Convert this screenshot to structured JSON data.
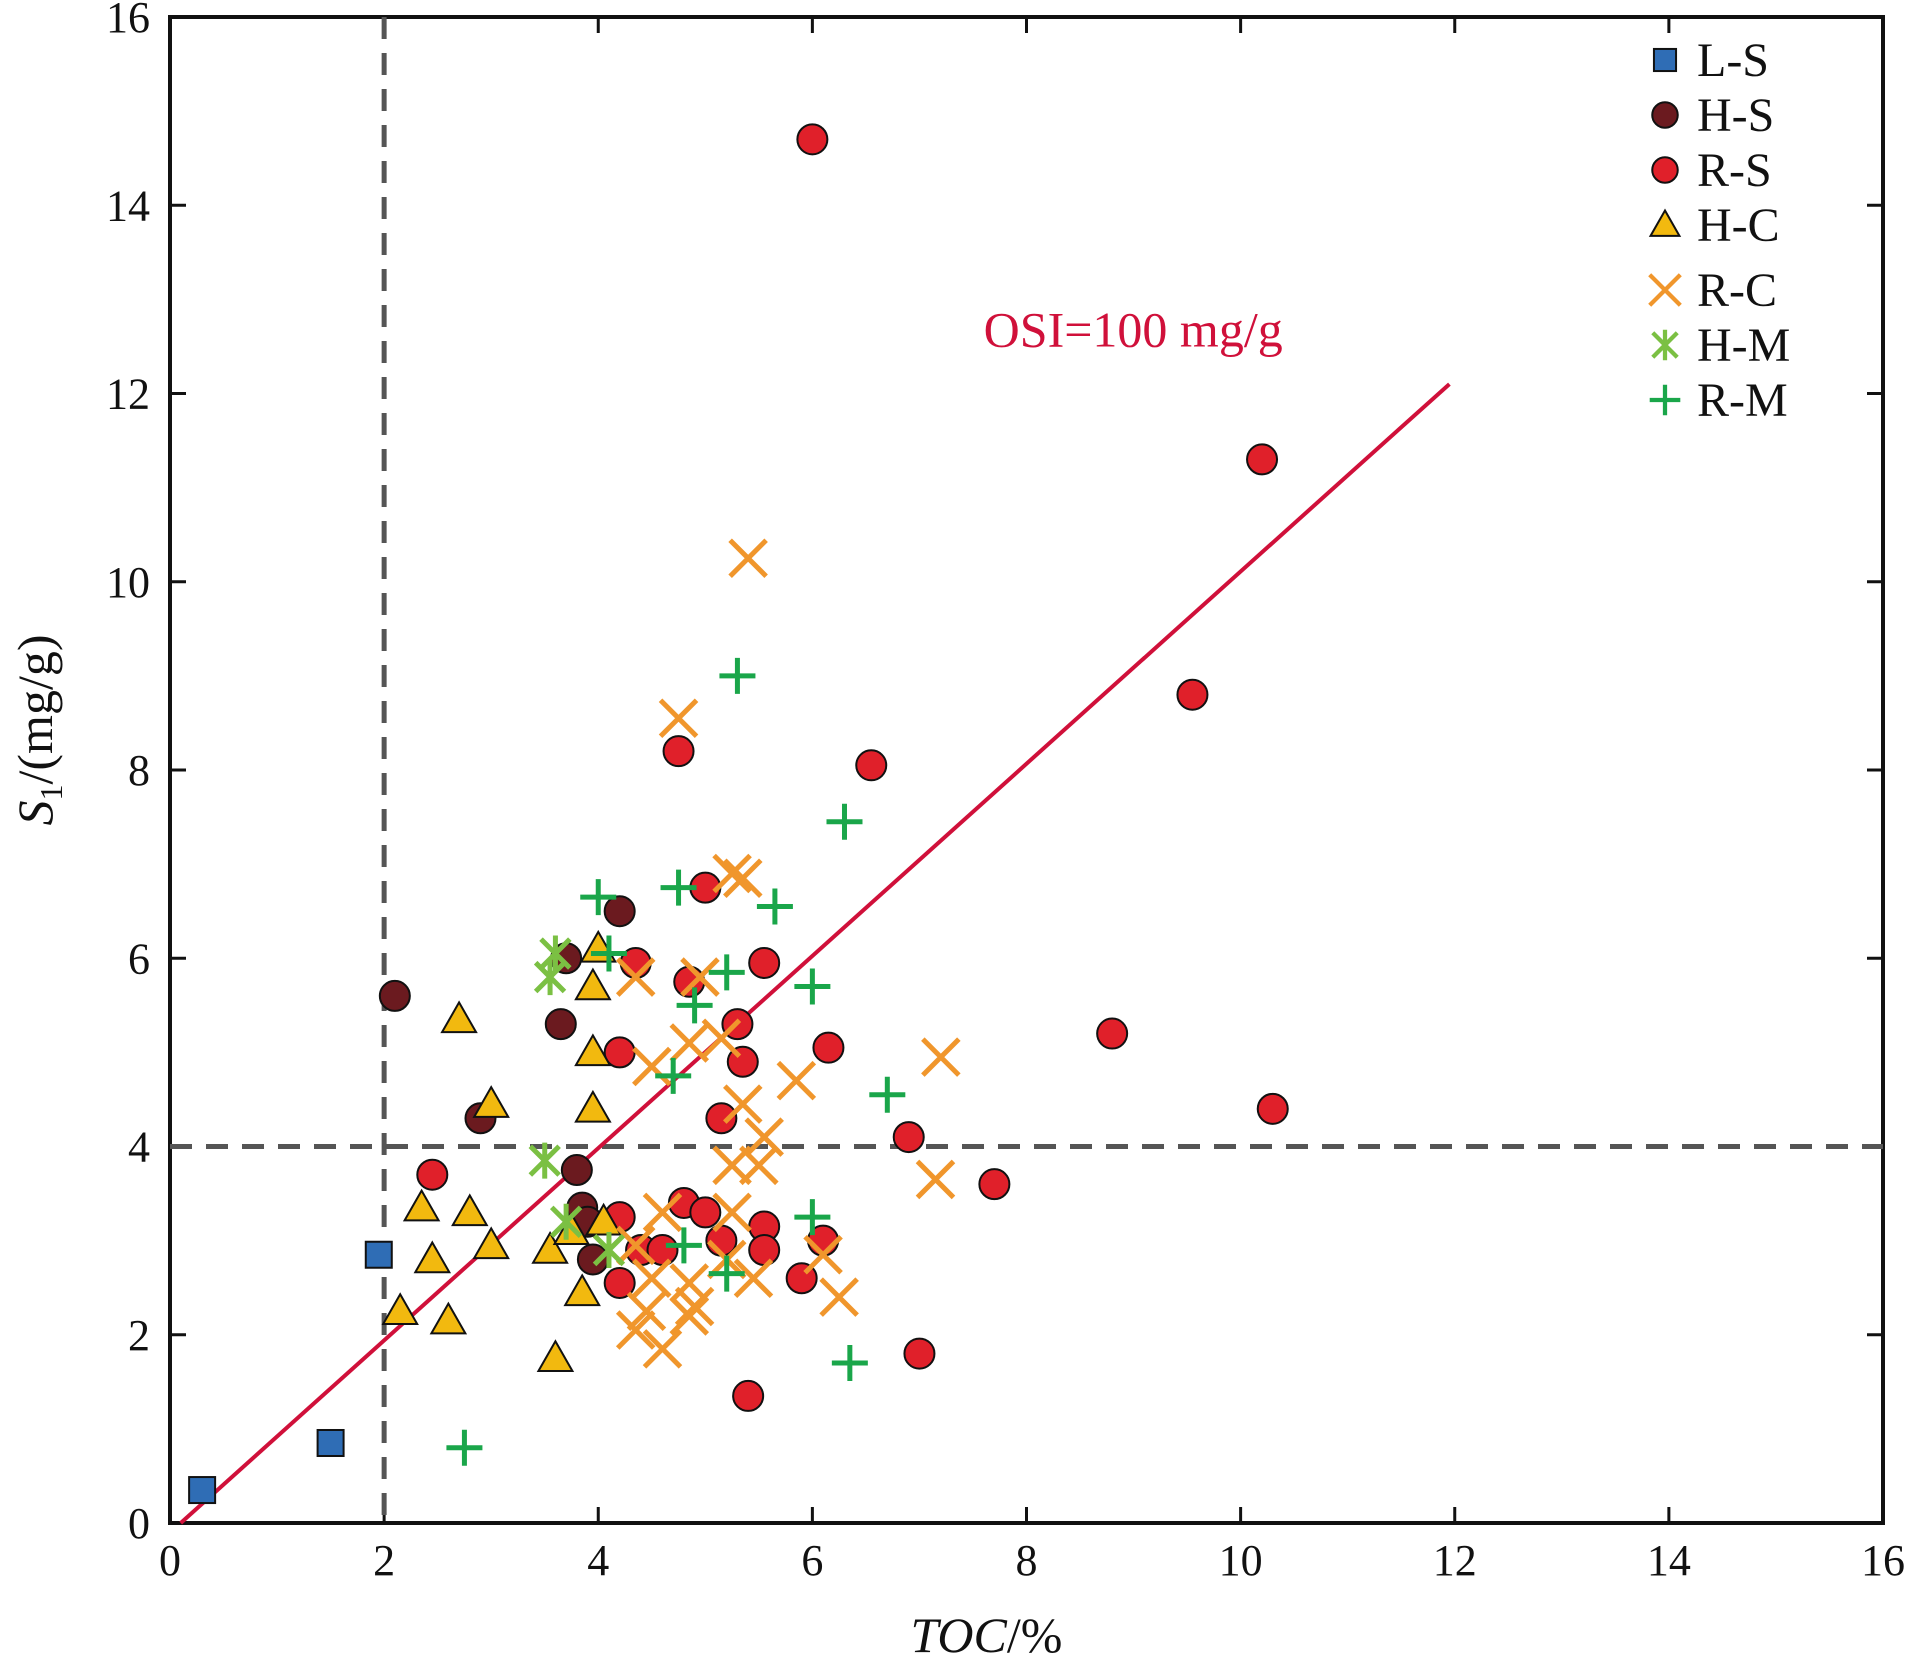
{
  "chart_data": {
    "type": "scatter",
    "xlabel": {
      "italic": "TOC",
      "rest": "/%"
    },
    "ylabel": {
      "sym": "S",
      "sub": "1",
      "rest": "/(mg/g)"
    },
    "xlim": [
      0,
      16
    ],
    "ylim": [
      0,
      16
    ],
    "xticks": [
      0,
      2,
      4,
      6,
      8,
      10,
      12,
      14,
      16
    ],
    "yticks": [
      0,
      2,
      4,
      6,
      8,
      10,
      12,
      14,
      16
    ],
    "grid": false,
    "legend_position": "top-right",
    "thresholds": {
      "x": 2.0,
      "y": 4.0
    },
    "annotations": [
      {
        "text": "OSI=100 mg/g",
        "x": 7.6,
        "y": 12.5,
        "color": "#d0103a"
      }
    ],
    "trendline": {
      "label": "OSI=100 mg/g",
      "points": [
        [
          0.1,
          0.0
        ],
        [
          11.95,
          12.1
        ]
      ],
      "color": "#d0103a"
    },
    "series": [
      {
        "name": "L-S",
        "marker": "square",
        "color": "#2f6db5",
        "points": [
          [
            0.3,
            0.35
          ],
          [
            1.5,
            0.85
          ],
          [
            1.95,
            2.85
          ]
        ]
      },
      {
        "name": "H-S",
        "marker": "circle",
        "color": "#6b1a1f",
        "points": [
          [
            2.1,
            5.6
          ],
          [
            2.9,
            4.3
          ],
          [
            3.7,
            6.0
          ],
          [
            3.65,
            5.3
          ],
          [
            4.2,
            6.5
          ],
          [
            3.8,
            3.75
          ],
          [
            3.85,
            3.35
          ],
          [
            3.9,
            3.2
          ],
          [
            3.95,
            2.8
          ]
        ]
      },
      {
        "name": "R-S",
        "marker": "circle",
        "color": "#e0202a",
        "points": [
          [
            6.0,
            14.7
          ],
          [
            10.2,
            11.3
          ],
          [
            9.55,
            8.8
          ],
          [
            4.75,
            8.2
          ],
          [
            6.55,
            8.05
          ],
          [
            5.0,
            6.75
          ],
          [
            4.35,
            5.95
          ],
          [
            4.85,
            5.75
          ],
          [
            5.55,
            5.95
          ],
          [
            5.3,
            5.3
          ],
          [
            4.2,
            5.0
          ],
          [
            6.15,
            5.05
          ],
          [
            5.35,
            4.9
          ],
          [
            5.15,
            4.3
          ],
          [
            8.8,
            5.2
          ],
          [
            10.3,
            4.4
          ],
          [
            6.9,
            4.1
          ],
          [
            2.45,
            3.7
          ],
          [
            7.7,
            3.6
          ],
          [
            4.8,
            3.4
          ],
          [
            5.0,
            3.3
          ],
          [
            4.2,
            3.25
          ],
          [
            5.55,
            3.15
          ],
          [
            5.15,
            3.0
          ],
          [
            6.1,
            3.0
          ],
          [
            4.4,
            2.9
          ],
          [
            4.6,
            2.9
          ],
          [
            5.55,
            2.9
          ],
          [
            4.2,
            2.55
          ],
          [
            5.9,
            2.6
          ],
          [
            7.0,
            1.8
          ],
          [
            5.4,
            1.35
          ]
        ]
      },
      {
        "name": "H-C",
        "marker": "triangle",
        "color": "#f2b90f",
        "points": [
          [
            2.7,
            5.35
          ],
          [
            4.0,
            6.1
          ],
          [
            3.95,
            5.7
          ],
          [
            3.95,
            5.0
          ],
          [
            3.95,
            4.4
          ],
          [
            3.0,
            4.45
          ],
          [
            2.35,
            3.35
          ],
          [
            2.8,
            3.3
          ],
          [
            3.0,
            2.95
          ],
          [
            2.45,
            2.8
          ],
          [
            3.55,
            2.9
          ],
          [
            3.75,
            3.1
          ],
          [
            4.05,
            3.2
          ],
          [
            3.85,
            2.45
          ],
          [
            2.15,
            2.25
          ],
          [
            2.6,
            2.15
          ],
          [
            3.6,
            1.75
          ]
        ]
      },
      {
        "name": "R-C",
        "marker": "x",
        "color": "#f0962c",
        "points": [
          [
            5.4,
            10.25
          ],
          [
            4.75,
            8.55
          ],
          [
            5.25,
            6.9
          ],
          [
            5.35,
            6.85
          ],
          [
            4.35,
            5.8
          ],
          [
            4.95,
            5.8
          ],
          [
            4.85,
            5.1
          ],
          [
            5.15,
            5.15
          ],
          [
            4.5,
            4.85
          ],
          [
            5.35,
            4.45
          ],
          [
            5.85,
            4.7
          ],
          [
            7.2,
            4.95
          ],
          [
            5.55,
            4.1
          ],
          [
            5.25,
            3.8
          ],
          [
            5.5,
            3.8
          ],
          [
            7.15,
            3.65
          ],
          [
            4.6,
            3.3
          ],
          [
            5.25,
            3.3
          ],
          [
            4.35,
            2.95
          ],
          [
            5.2,
            2.8
          ],
          [
            6.1,
            2.85
          ],
          [
            4.5,
            2.6
          ],
          [
            4.85,
            2.55
          ],
          [
            5.45,
            2.6
          ],
          [
            6.25,
            2.4
          ],
          [
            4.45,
            2.25
          ],
          [
            4.85,
            2.2
          ],
          [
            4.9,
            2.3
          ],
          [
            4.35,
            2.05
          ],
          [
            4.6,
            1.85
          ]
        ]
      },
      {
        "name": "H-M",
        "marker": "asterisk",
        "color": "#7bc043",
        "points": [
          [
            3.6,
            6.05
          ],
          [
            3.55,
            5.8
          ],
          [
            3.5,
            3.85
          ],
          [
            3.7,
            3.2
          ],
          [
            4.1,
            2.9
          ]
        ]
      },
      {
        "name": "R-M",
        "marker": "plus",
        "color": "#1aa64a",
        "points": [
          [
            5.3,
            9.0
          ],
          [
            6.3,
            7.45
          ],
          [
            4.0,
            6.65
          ],
          [
            4.75,
            6.75
          ],
          [
            5.65,
            6.55
          ],
          [
            4.1,
            6.05
          ],
          [
            5.2,
            5.85
          ],
          [
            6.0,
            5.7
          ],
          [
            4.9,
            5.5
          ],
          [
            4.7,
            4.75
          ],
          [
            6.7,
            4.55
          ],
          [
            6.0,
            3.25
          ],
          [
            4.8,
            2.95
          ],
          [
            5.2,
            2.65
          ],
          [
            6.35,
            1.7
          ],
          [
            2.75,
            0.8
          ]
        ]
      }
    ]
  }
}
